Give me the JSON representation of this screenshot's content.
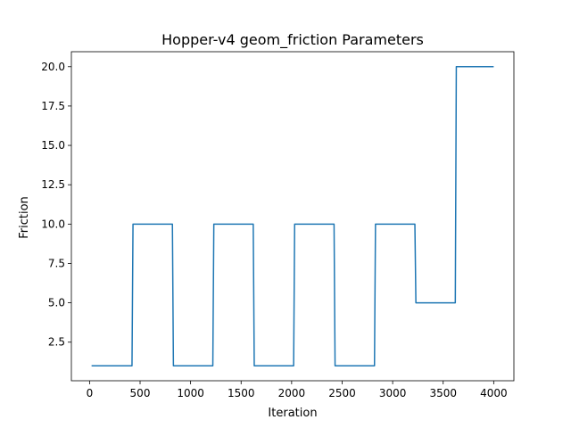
{
  "chart_data": {
    "type": "line",
    "title": "Hopper-v4 geom_friction Parameters",
    "xlabel": "Iteration",
    "ylabel": "Friction",
    "xlim": [
      -180,
      4200
    ],
    "ylim": [
      0.05,
      20.95
    ],
    "xticks": [
      0,
      500,
      1000,
      1500,
      2000,
      2500,
      3000,
      3500,
      4000
    ],
    "xtick_labels": [
      "0",
      "500",
      "1000",
      "1500",
      "2000",
      "2500",
      "3000",
      "3500",
      "4000"
    ],
    "yticks": [
      2.5,
      5.0,
      7.5,
      10.0,
      12.5,
      15.0,
      17.5,
      20.0
    ],
    "ytick_labels": [
      "2.5",
      "5.0",
      "7.5",
      "10.0",
      "12.5",
      "15.0",
      "17.5",
      "20.0"
    ],
    "grid": false,
    "series": [
      {
        "color": "#1f77b4",
        "x": [
          20,
          420,
          430,
          820,
          830,
          1220,
          1230,
          1620,
          1630,
          2020,
          2030,
          2420,
          2430,
          2820,
          2830,
          3220,
          3230,
          3620,
          3630,
          4000
        ],
        "y": [
          1,
          1,
          10,
          10,
          1,
          1,
          10,
          10,
          1,
          1,
          10,
          10,
          1,
          1,
          10,
          10,
          5,
          5,
          20,
          20
        ]
      }
    ]
  }
}
